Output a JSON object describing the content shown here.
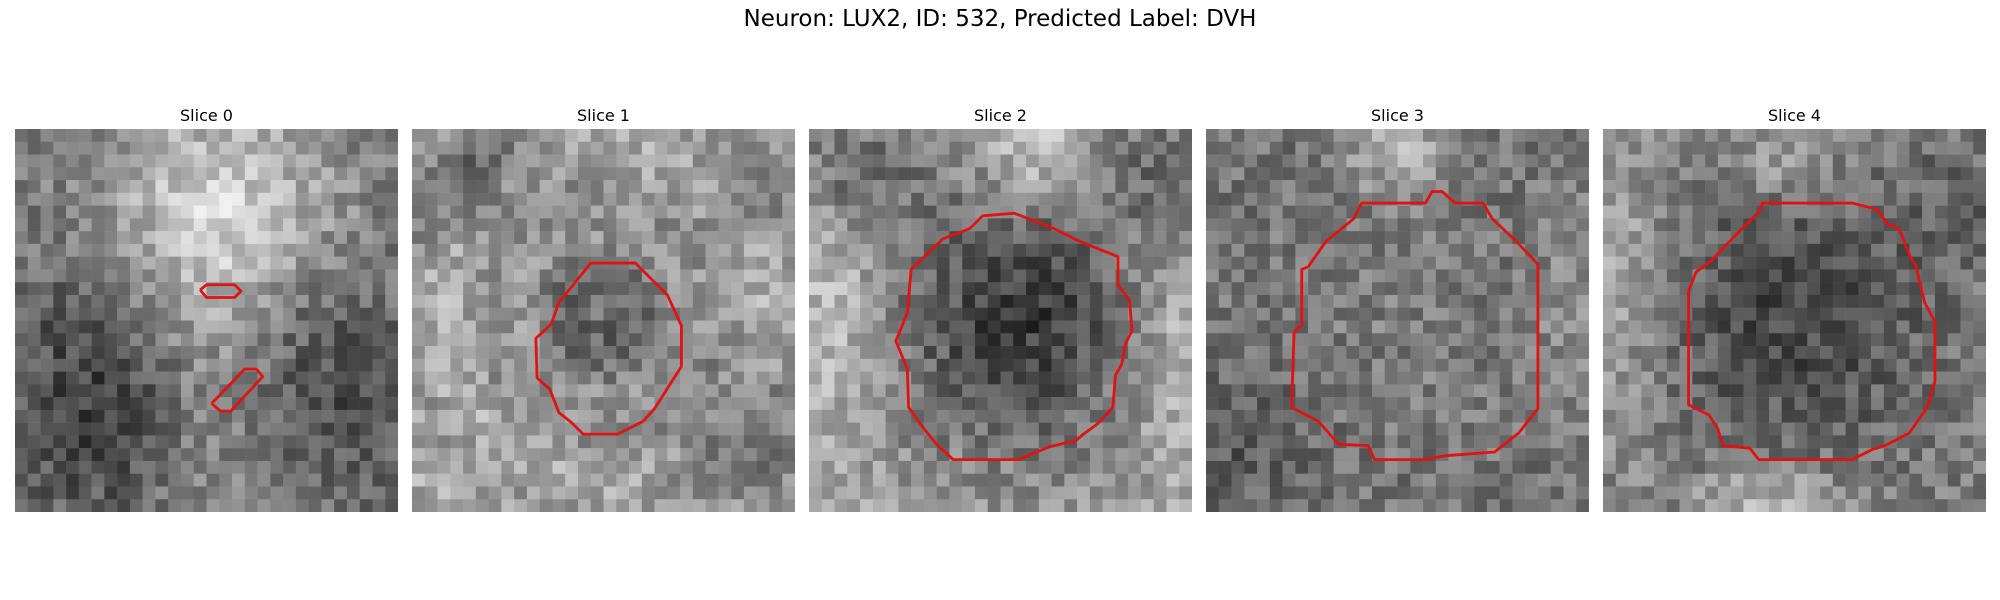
{
  "figure": {
    "title": "Neuron: LUX2, ID: 532, Predicted Label: DVH"
  },
  "panels": [
    {
      "title": "Slice 0"
    },
    {
      "title": "Slice 1"
    },
    {
      "title": "Slice 2"
    },
    {
      "title": "Slice 3"
    },
    {
      "title": "Slice 4"
    }
  ],
  "style": {
    "contour_color": "#e01212",
    "colormap": "grayscale"
  }
}
